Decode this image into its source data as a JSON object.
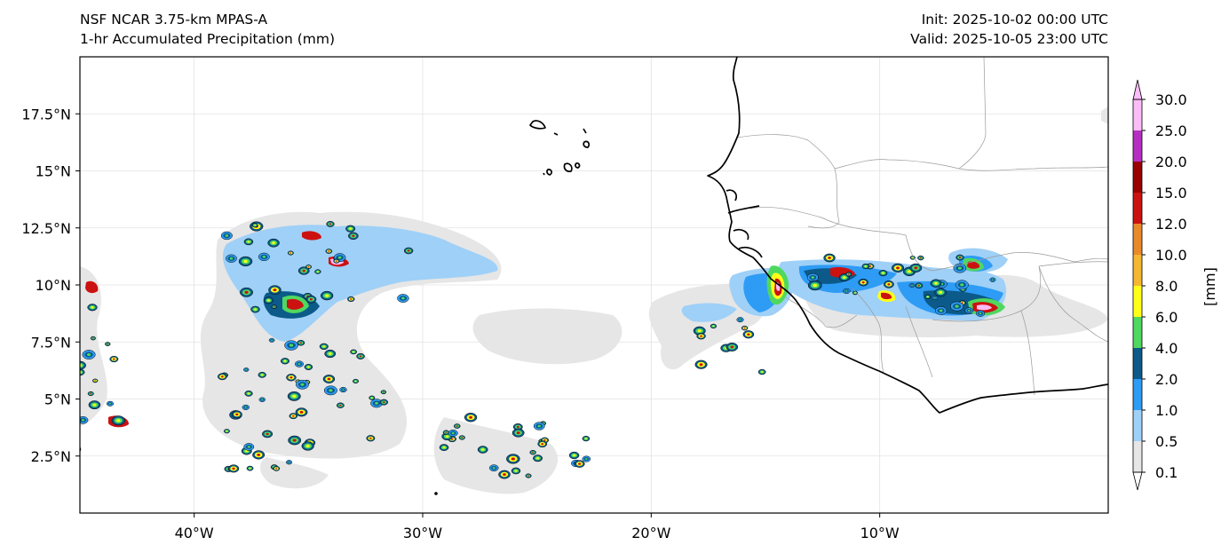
{
  "header": {
    "model": "NSF NCAR 3.75-km MPAS-A",
    "field": "1-hr Accumulated Precipitation (mm)",
    "init": "Init: 2025-10-02 00:00 UTC",
    "valid": "Valid: 2025-10-05 23:00 UTC"
  },
  "map": {
    "lon_range": [
      -45,
      0
    ],
    "lat_range": [
      0,
      20
    ],
    "lon_ticks": [
      {
        "value": -40,
        "label": "40°W"
      },
      {
        "value": -30,
        "label": "30°W"
      },
      {
        "value": -20,
        "label": "20°W"
      },
      {
        "value": -10,
        "label": "10°W"
      }
    ],
    "lat_ticks": [
      {
        "value": 2.5,
        "label": "2.5°N"
      },
      {
        "value": 5,
        "label": "5°N"
      },
      {
        "value": 7.5,
        "label": "7.5°N"
      },
      {
        "value": 10,
        "label": "10°N"
      },
      {
        "value": 12.5,
        "label": "12.5°N"
      },
      {
        "value": 15,
        "label": "15°N"
      },
      {
        "value": 17.5,
        "label": "17.5°N"
      }
    ],
    "gridlines": true
  },
  "colorbar": {
    "unit_label": "[mm]",
    "levels": [
      "0.1",
      "0.5",
      "1.0",
      "2.0",
      "4.0",
      "6.0",
      "8.0",
      "10.0",
      "12.0",
      "15.0",
      "20.0",
      "25.0",
      "30.0"
    ],
    "colors": [
      "#e6e6e6",
      "#9fd0f7",
      "#2e9cf5",
      "#0b5a8a",
      "#4fd85f",
      "#ffff1a",
      "#f5b731",
      "#e88a2a",
      "#cc1111",
      "#9a0000",
      "#b62fc2",
      "#fbbcf7"
    ],
    "extend": "both"
  }
}
